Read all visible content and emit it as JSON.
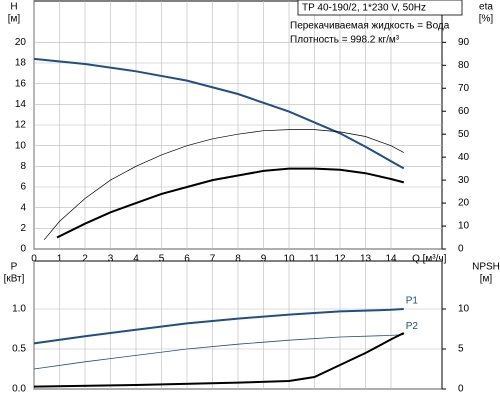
{
  "chart_data": [
    {
      "type": "line",
      "title": "TP 40-190/2, 1*230 V, 50Hz",
      "annotations": [
        "Перекачиваемая жидкость = Вода",
        "Плотность = 998.2 кг/м³"
      ],
      "ylabel": "H",
      "yunit": "[м]",
      "y2label": "eta",
      "y2unit": "[%]",
      "xlabel": "Q [м³/ч]",
      "xlim": [
        0,
        16
      ],
      "xticks": [
        0,
        1,
        2,
        3,
        4,
        5,
        6,
        7,
        8,
        9,
        10,
        11,
        12,
        13,
        14
      ],
      "ylim": [
        0,
        24
      ],
      "yticks": [
        0,
        2,
        4,
        6,
        8,
        10,
        12,
        14,
        16,
        18,
        20
      ],
      "y2lim": [
        0,
        108
      ],
      "y2ticks": [
        0,
        10,
        20,
        30,
        40,
        50,
        60,
        70,
        80,
        90
      ],
      "grid": true,
      "series": [
        {
          "color": "#1f4e8c",
          "width": 2,
          "x": [
            0,
            2,
            4,
            6,
            8,
            10,
            12,
            13,
            14,
            14.5
          ],
          "values": [
            18.4,
            17.9,
            17.2,
            16.3,
            15.0,
            13.3,
            11.2,
            9.9,
            8.5,
            7.8
          ]
        },
        {
          "color": "#000000",
          "width": 0.7,
          "axis": "y2",
          "x": [
            0.4,
            1,
            2,
            3,
            4,
            5,
            6,
            7,
            8,
            9,
            10,
            11,
            12,
            13,
            14,
            14.5
          ],
          "values": [
            4,
            12,
            22,
            30,
            36,
            41,
            45,
            48,
            50,
            51.5,
            52,
            52,
            51,
            49,
            45,
            42
          ]
        },
        {
          "color": "#000000",
          "width": 2,
          "axis": "y2",
          "x": [
            0.9,
            2,
            3,
            4,
            5,
            6,
            7,
            8,
            9,
            10,
            11,
            12,
            13,
            14,
            14.5
          ],
          "values": [
            5,
            11,
            16,
            20,
            24,
            27,
            30,
            32,
            34,
            35,
            35,
            34.5,
            33,
            30.5,
            29
          ]
        }
      ]
    },
    {
      "type": "line",
      "ylabel": "P",
      "yunit": "[кВт]",
      "y2label": "NPSH",
      "y2unit": "[м]",
      "xlim": [
        0,
        16
      ],
      "ylim": [
        0,
        1.6
      ],
      "yticks": [
        {
          "value": 0,
          "label": "0.0"
        },
        {
          "value": 0.5,
          "label": "0.5"
        },
        {
          "value": 1,
          "label": "1.0"
        }
      ],
      "y2lim": [
        0,
        16
      ],
      "y2ticks": [
        0,
        5,
        10
      ],
      "grid": true,
      "series": [
        {
          "name": "P1",
          "color": "#1f4e8c",
          "width": 2,
          "x": [
            0,
            2,
            4,
            6,
            8,
            10,
            12,
            14,
            14.5
          ],
          "values": [
            0.57,
            0.66,
            0.74,
            0.82,
            0.88,
            0.93,
            0.97,
            0.99,
            1.0
          ]
        },
        {
          "name": "P2",
          "color": "#1f4e8c",
          "width": 0.8,
          "x": [
            0,
            2,
            4,
            6,
            8,
            10,
            12,
            14,
            14.5
          ],
          "values": [
            0.25,
            0.34,
            0.42,
            0.5,
            0.56,
            0.61,
            0.65,
            0.67,
            0.68
          ]
        },
        {
          "color": "#000000",
          "width": 2,
          "axis": "y2",
          "x": [
            0,
            4,
            8,
            10,
            11,
            12,
            13,
            14,
            14.5
          ],
          "values": [
            0.3,
            0.5,
            0.8,
            1.0,
            1.5,
            3.0,
            4.5,
            6.2,
            7.0
          ]
        }
      ]
    }
  ]
}
